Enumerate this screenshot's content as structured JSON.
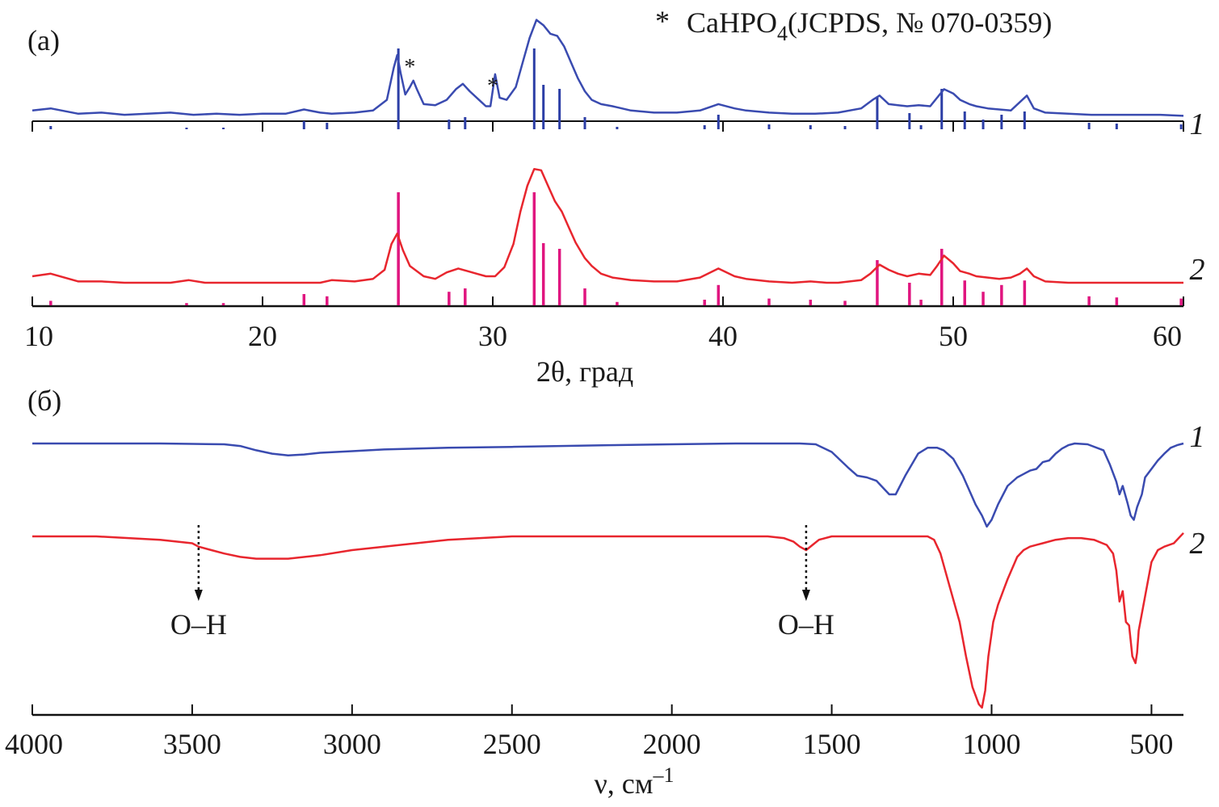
{
  "chart_data": [
    {
      "type": "line",
      "panel_label": "(а)",
      "title": "",
      "xlabel": "2θ, град",
      "ylabel": "",
      "xlim": [
        10,
        60
      ],
      "xticks": [
        10,
        20,
        30,
        40,
        50,
        60
      ],
      "legend": {
        "marker": "*",
        "text_main": "CaHPO",
        "text_sub": "4",
        "text_rest": "(JCPDS, № 070-0359)",
        "placement": "top-right"
      },
      "star_marked_peaks": [
        26.4,
        30.0
      ],
      "colors": {
        "series1": "#3a4bb0",
        "series2": "#e8262e",
        "ref1": "#2c3ea6",
        "ref2": "#e0157f"
      },
      "series": [
        {
          "name": "1",
          "x": [
            10,
            10.8,
            12,
            13,
            14,
            15,
            16,
            17,
            18,
            19,
            20,
            21,
            21.8,
            22.5,
            23,
            24,
            24.8,
            25.4,
            25.7,
            25.85,
            26.0,
            26.2,
            26.4,
            26.55,
            26.7,
            27,
            27.5,
            28,
            28.4,
            28.7,
            29,
            29.4,
            29.7,
            29.9,
            30.1,
            30.3,
            30.6,
            31,
            31.3,
            31.6,
            31.9,
            32.2,
            32.5,
            32.8,
            33.1,
            33.4,
            33.7,
            34,
            34.3,
            34.7,
            35.2,
            36,
            37,
            38,
            39,
            39.8,
            40.5,
            41,
            42,
            43,
            44,
            45,
            46,
            46.5,
            46.8,
            47.2,
            47.6,
            48,
            48.5,
            49,
            49.3,
            49.6,
            50,
            50.3,
            50.7,
            51,
            51.5,
            52,
            52.5,
            52.9,
            53.2,
            53.5,
            54,
            55,
            56,
            57,
            58,
            59,
            60
          ],
          "y": [
            0.1,
            0.12,
            0.07,
            0.08,
            0.06,
            0.07,
            0.08,
            0.06,
            0.07,
            0.06,
            0.07,
            0.07,
            0.11,
            0.08,
            0.07,
            0.08,
            0.1,
            0.2,
            0.5,
            0.62,
            0.45,
            0.25,
            0.32,
            0.38,
            0.3,
            0.16,
            0.15,
            0.2,
            0.3,
            0.35,
            0.28,
            0.2,
            0.14,
            0.14,
            0.44,
            0.22,
            0.2,
            0.32,
            0.55,
            0.78,
            0.95,
            0.9,
            0.82,
            0.8,
            0.7,
            0.55,
            0.4,
            0.28,
            0.2,
            0.16,
            0.14,
            0.1,
            0.08,
            0.08,
            0.1,
            0.16,
            0.12,
            0.1,
            0.08,
            0.07,
            0.07,
            0.08,
            0.12,
            0.2,
            0.24,
            0.16,
            0.15,
            0.14,
            0.15,
            0.14,
            0.22,
            0.3,
            0.26,
            0.2,
            0.16,
            0.14,
            0.12,
            0.11,
            0.1,
            0.18,
            0.24,
            0.12,
            0.08,
            0.07,
            0.06,
            0.06,
            0.06,
            0.06,
            0.05
          ]
        },
        {
          "name": "2",
          "x": [
            10,
            10.8,
            12,
            13,
            14,
            15,
            16,
            16.8,
            17.5,
            18,
            19,
            20,
            21,
            21.8,
            22.5,
            23,
            24,
            24.8,
            25.3,
            25.6,
            25.85,
            26.1,
            26.4,
            27,
            27.5,
            28,
            28.5,
            28.9,
            29.3,
            29.7,
            30.1,
            30.5,
            30.9,
            31.2,
            31.5,
            31.8,
            32.1,
            32.4,
            32.7,
            33,
            33.3,
            33.6,
            34,
            34.3,
            34.7,
            35.2,
            36,
            37,
            38,
            39,
            39.8,
            40.5,
            41,
            42,
            43,
            43.8,
            44.5,
            45,
            46,
            46.4,
            46.8,
            47.2,
            47.6,
            48,
            48.5,
            49,
            49.3,
            49.6,
            50,
            50.3,
            50.7,
            51,
            51.5,
            52,
            52.5,
            52.9,
            53.2,
            53.5,
            54,
            55,
            56,
            57,
            58,
            59,
            60
          ],
          "y": [
            0.1,
            0.12,
            0.06,
            0.06,
            0.05,
            0.05,
            0.05,
            0.07,
            0.05,
            0.05,
            0.05,
            0.05,
            0.05,
            0.05,
            0.05,
            0.07,
            0.06,
            0.08,
            0.15,
            0.35,
            0.43,
            0.3,
            0.18,
            0.1,
            0.08,
            0.13,
            0.16,
            0.14,
            0.12,
            0.1,
            0.1,
            0.17,
            0.35,
            0.6,
            0.8,
            0.93,
            0.92,
            0.8,
            0.68,
            0.6,
            0.48,
            0.36,
            0.24,
            0.18,
            0.12,
            0.09,
            0.07,
            0.06,
            0.06,
            0.09,
            0.16,
            0.1,
            0.08,
            0.06,
            0.05,
            0.06,
            0.05,
            0.05,
            0.07,
            0.12,
            0.19,
            0.15,
            0.12,
            0.1,
            0.12,
            0.11,
            0.18,
            0.26,
            0.2,
            0.14,
            0.12,
            0.1,
            0.09,
            0.08,
            0.09,
            0.12,
            0.16,
            0.1,
            0.06,
            0.05,
            0.05,
            0.05,
            0.05,
            0.05,
            0.05
          ]
        }
      ],
      "reference_lines": {
        "description": "CaHPO4 (JCPDS № 070-0359) stick pattern: 2θ position and relative intensity",
        "x": [
          10.8,
          16.7,
          18.3,
          21.8,
          22.8,
          25.9,
          28.1,
          28.8,
          31.8,
          32.2,
          32.9,
          34.0,
          35.4,
          39.2,
          39.8,
          42.0,
          43.8,
          45.3,
          46.7,
          48.1,
          48.6,
          49.5,
          50.5,
          51.3,
          52.1,
          53.1,
          55.9,
          57.1,
          59.9
        ],
        "y": [
          0.04,
          0.02,
          0.02,
          0.1,
          0.08,
          1.0,
          0.12,
          0.15,
          1.0,
          0.55,
          0.5,
          0.15,
          0.03,
          0.05,
          0.18,
          0.06,
          0.05,
          0.04,
          0.4,
          0.2,
          0.05,
          0.5,
          0.22,
          0.12,
          0.18,
          0.22,
          0.08,
          0.07,
          0.06
        ]
      }
    },
    {
      "type": "line",
      "panel_label": "(б)",
      "title": "",
      "xlabel": "ν, см",
      "xlabel_sup": "–1",
      "ylabel": "",
      "xlim": [
        4000,
        400
      ],
      "xticks": [
        4000,
        3500,
        3000,
        2500,
        2000,
        1500,
        1000,
        500
      ],
      "annotations": [
        {
          "text": "O–H",
          "x": 3480
        },
        {
          "text": "O–H",
          "x": 1580
        }
      ],
      "colors": {
        "series1": "#3a4bb0",
        "series2": "#e8262e"
      },
      "series": [
        {
          "name": "1",
          "x": [
            4000,
            3800,
            3600,
            3500,
            3400,
            3350,
            3300,
            3250,
            3200,
            3150,
            3100,
            3000,
            2900,
            2700,
            2500,
            2200,
            2000,
            1800,
            1650,
            1600,
            1550,
            1500,
            1450,
            1420,
            1390,
            1360,
            1340,
            1320,
            1300,
            1270,
            1230,
            1200,
            1170,
            1150,
            1120,
            1090,
            1070,
            1050,
            1030,
            1015,
            1000,
            980,
            950,
            920,
            900,
            880,
            860,
            840,
            820,
            800,
            780,
            760,
            740,
            700,
            650,
            630,
            610,
            600,
            590,
            575,
            565,
            555,
            545,
            530,
            520,
            500,
            480,
            460,
            440,
            420,
            400
          ],
          "y": [
            0.0,
            0.0,
            0.0,
            0.005,
            0.01,
            0.03,
            0.08,
            0.12,
            0.14,
            0.13,
            0.11,
            0.09,
            0.07,
            0.05,
            0.04,
            0.02,
            0.01,
            0.0,
            0.0,
            0.0,
            0.01,
            0.1,
            0.28,
            0.38,
            0.4,
            0.44,
            0.52,
            0.6,
            0.6,
            0.38,
            0.12,
            0.05,
            0.05,
            0.08,
            0.18,
            0.38,
            0.55,
            0.72,
            0.85,
            0.98,
            0.9,
            0.72,
            0.5,
            0.4,
            0.36,
            0.32,
            0.3,
            0.22,
            0.2,
            0.12,
            0.06,
            0.02,
            0.0,
            0.01,
            0.08,
            0.25,
            0.45,
            0.6,
            0.5,
            0.7,
            0.85,
            0.9,
            0.75,
            0.6,
            0.4,
            0.3,
            0.2,
            0.12,
            0.05,
            0.02,
            0.0
          ]
        },
        {
          "name": "2",
          "x": [
            4000,
            3800,
            3600,
            3500,
            3480,
            3440,
            3400,
            3350,
            3300,
            3250,
            3200,
            3100,
            3000,
            2900,
            2800,
            2700,
            2500,
            2300,
            2000,
            1800,
            1700,
            1650,
            1620,
            1600,
            1580,
            1560,
            1540,
            1500,
            1400,
            1300,
            1200,
            1180,
            1160,
            1130,
            1100,
            1080,
            1060,
            1040,
            1030,
            1020,
            1010,
            995,
            980,
            960,
            950,
            920,
            900,
            880,
            860,
            840,
            800,
            760,
            720,
            680,
            640,
            620,
            610,
            600,
            590,
            580,
            570,
            560,
            550,
            545,
            540,
            520,
            500,
            480,
            460,
            430,
            400
          ],
          "y": [
            0.0,
            0.0,
            0.02,
            0.04,
            0.06,
            0.08,
            0.1,
            0.12,
            0.13,
            0.13,
            0.13,
            0.11,
            0.08,
            0.06,
            0.04,
            0.02,
            0.0,
            0.0,
            0.0,
            0.0,
            0.0,
            0.01,
            0.03,
            0.06,
            0.08,
            0.05,
            0.02,
            0.0,
            0.0,
            0.0,
            0.0,
            0.02,
            0.1,
            0.3,
            0.5,
            0.7,
            0.88,
            0.98,
            1.0,
            0.9,
            0.7,
            0.5,
            0.4,
            0.3,
            0.25,
            0.12,
            0.08,
            0.06,
            0.05,
            0.04,
            0.02,
            0.01,
            0.01,
            0.02,
            0.05,
            0.1,
            0.2,
            0.38,
            0.32,
            0.5,
            0.52,
            0.7,
            0.74,
            0.68,
            0.55,
            0.35,
            0.15,
            0.08,
            0.06,
            0.04,
            -0.02
          ]
        }
      ]
    }
  ]
}
